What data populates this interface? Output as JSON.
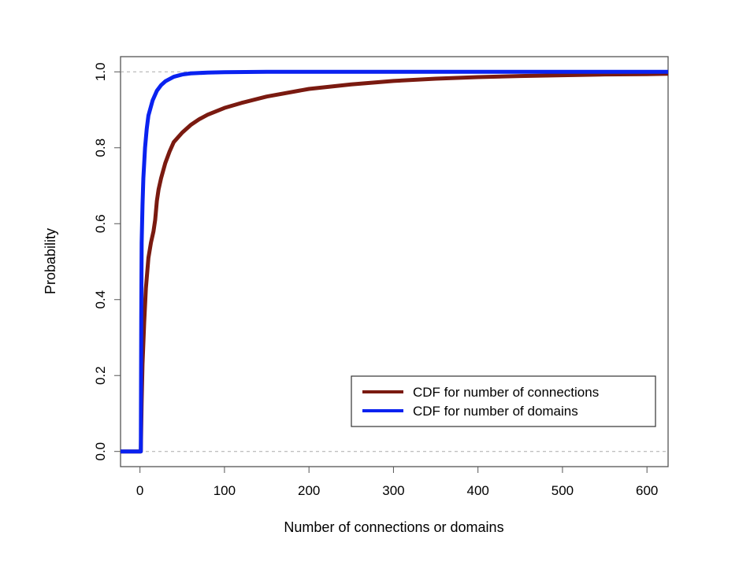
{
  "chart_data": {
    "type": "line",
    "title": "",
    "xlabel": "Number of connections or domains",
    "ylabel": "Probability",
    "xlim": [
      -23,
      625
    ],
    "ylim": [
      -0.04,
      1.04
    ],
    "x_ticks": [
      0,
      100,
      200,
      300,
      400,
      500,
      600
    ],
    "x_tick_labels": [
      "0",
      "100",
      "200",
      "300",
      "400",
      "500",
      "600"
    ],
    "y_ticks": [
      0.0,
      0.2,
      0.4,
      0.6,
      0.8,
      1.0
    ],
    "y_tick_labels": [
      "0.0",
      "0.2",
      "0.4",
      "0.6",
      "0.8",
      "1.0"
    ],
    "reference_lines": [
      0.0,
      1.0
    ],
    "grid": false,
    "legend_position": "bottom-right",
    "series": [
      {
        "name": "CDF for number of connections",
        "color": "#7a1a10",
        "points": [
          [
            -23,
            0.0
          ],
          [
            0,
            0.0
          ],
          [
            1,
            0.0
          ],
          [
            2,
            0.13
          ],
          [
            3,
            0.23
          ],
          [
            5,
            0.34
          ],
          [
            7,
            0.43
          ],
          [
            10,
            0.51
          ],
          [
            13,
            0.55
          ],
          [
            16,
            0.58
          ],
          [
            18,
            0.61
          ],
          [
            20,
            0.66
          ],
          [
            22,
            0.69
          ],
          [
            25,
            0.72
          ],
          [
            30,
            0.76
          ],
          [
            35,
            0.79
          ],
          [
            40,
            0.815
          ],
          [
            50,
            0.84
          ],
          [
            60,
            0.86
          ],
          [
            70,
            0.875
          ],
          [
            80,
            0.887
          ],
          [
            100,
            0.905
          ],
          [
            120,
            0.918
          ],
          [
            150,
            0.935
          ],
          [
            200,
            0.955
          ],
          [
            250,
            0.967
          ],
          [
            300,
            0.976
          ],
          [
            350,
            0.982
          ],
          [
            400,
            0.986
          ],
          [
            450,
            0.989
          ],
          [
            500,
            0.991
          ],
          [
            550,
            0.993
          ],
          [
            600,
            0.994
          ],
          [
            625,
            0.995
          ]
        ]
      },
      {
        "name": "CDF for number of domains",
        "color": "#0a22f0",
        "points": [
          [
            -23,
            0.0
          ],
          [
            0,
            0.0
          ],
          [
            1,
            0.0
          ],
          [
            1.5,
            0.35
          ],
          [
            2,
            0.55
          ],
          [
            3,
            0.65
          ],
          [
            4,
            0.72
          ],
          [
            6,
            0.8
          ],
          [
            8,
            0.85
          ],
          [
            10,
            0.885
          ],
          [
            15,
            0.925
          ],
          [
            20,
            0.95
          ],
          [
            25,
            0.965
          ],
          [
            30,
            0.975
          ],
          [
            40,
            0.987
          ],
          [
            50,
            0.993
          ],
          [
            60,
            0.996
          ],
          [
            80,
            0.998
          ],
          [
            100,
            0.999
          ],
          [
            150,
            1.0
          ],
          [
            625,
            1.0
          ]
        ]
      }
    ]
  }
}
